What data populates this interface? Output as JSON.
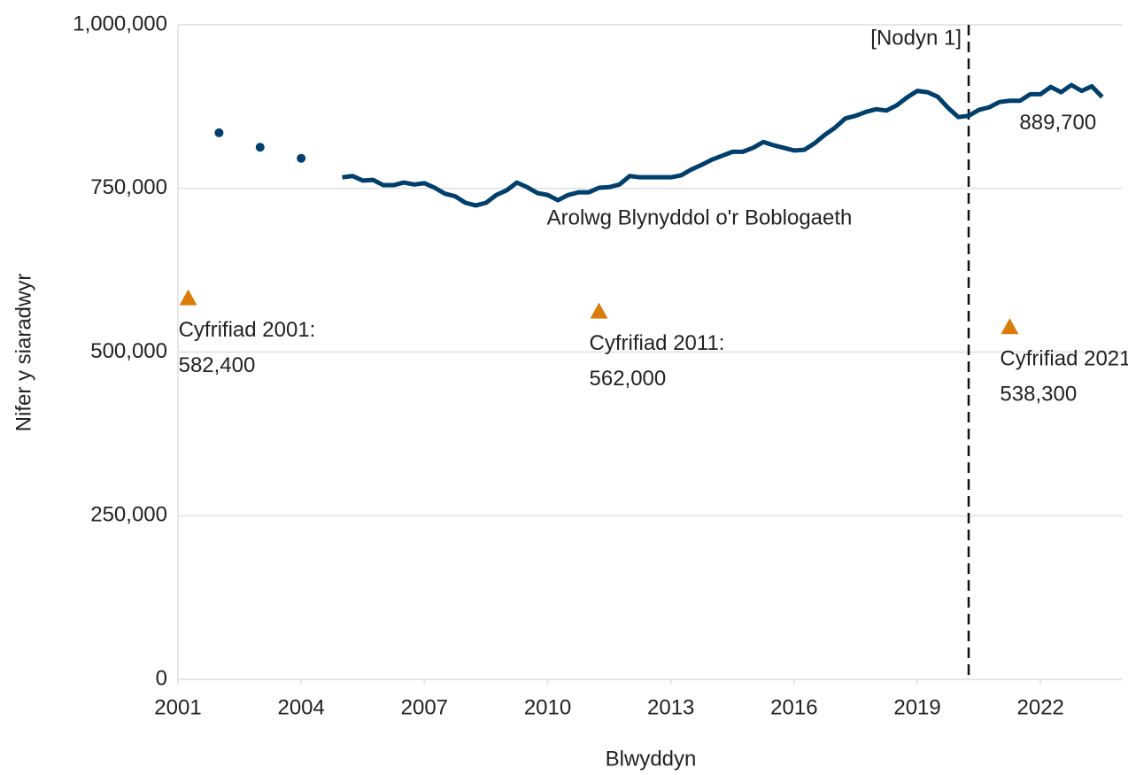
{
  "chart_data": {
    "type": "line",
    "xlabel": "Blwyddyn",
    "ylabel": "Nifer y siaradwyr",
    "xlim": [
      2001,
      2024
    ],
    "xticks": [
      2001,
      2004,
      2007,
      2010,
      2013,
      2016,
      2019,
      2022
    ],
    "ylim": [
      0,
      1000000
    ],
    "yticks": [
      0,
      {
        "value": 250000,
        "label": "250,000"
      },
      {
        "value": 500000,
        "label": "500,000"
      },
      {
        "value": 750000,
        "label": "750,000"
      },
      {
        "value": 1000000,
        "label": "1,000,000"
      }
    ],
    "grid": true,
    "series": [
      {
        "style": "dots",
        "color": "#003f6b",
        "x": [
          2002,
          2003,
          2004
        ],
        "values": [
          835000,
          813000,
          796000
        ]
      },
      {
        "style": "line",
        "name": "Arolwg Blynyddol o'r Boblogaeth",
        "color": "#003f6b",
        "x": [
          2005,
          2005.25,
          2005.5,
          2005.75,
          2006,
          2006.25,
          2006.5,
          2006.75,
          2007,
          2007.25,
          2007.5,
          2007.75,
          2008,
          2008.25,
          2008.5,
          2008.75,
          2009,
          2009.25,
          2009.5,
          2009.75,
          2010,
          2010.25,
          2010.5,
          2010.75,
          2011,
          2011.25,
          2011.5,
          2011.75,
          2012,
          2012.25,
          2012.5,
          2012.75,
          2013,
          2013.25,
          2013.5,
          2013.75,
          2014,
          2014.25,
          2014.5,
          2014.75,
          2015,
          2015.25,
          2015.5,
          2015.75,
          2016,
          2016.25,
          2016.5,
          2016.75,
          2017,
          2017.25,
          2017.5,
          2017.75,
          2018,
          2018.25,
          2018.5,
          2018.75,
          2019,
          2019.25,
          2019.5,
          2019.75,
          2020,
          2020.25,
          2020.5,
          2020.75,
          2021,
          2021.25,
          2021.5,
          2021.75,
          2022,
          2022.25,
          2022.5,
          2022.75,
          2023,
          2023.25,
          2023.5
        ],
        "values": [
          767000,
          769000,
          762000,
          763000,
          755000,
          755000,
          759000,
          756000,
          758000,
          751000,
          742000,
          738000,
          728000,
          724000,
          728000,
          740000,
          747000,
          759000,
          752000,
          743000,
          740000,
          732000,
          740000,
          744000,
          744000,
          751000,
          752000,
          756000,
          769000,
          767000,
          767000,
          767000,
          767000,
          770000,
          779000,
          786000,
          794000,
          800000,
          806000,
          806000,
          812000,
          821000,
          816000,
          812000,
          808000,
          809000,
          819000,
          832000,
          843000,
          857000,
          861000,
          867000,
          871000,
          869000,
          877000,
          889000,
          899000,
          897000,
          890000,
          873000,
          859000,
          861000,
          870000,
          874000,
          882000,
          884000,
          884000,
          894000,
          894000,
          905000,
          897000,
          908000,
          899000,
          906000,
          889700
        ],
        "last_value_label": "889,700"
      },
      {
        "style": "triangles",
        "color": "#d97c0b",
        "x": [
          2001.25,
          2011.25,
          2021.25
        ],
        "values": [
          582400,
          562000,
          538300
        ],
        "point_labels": [
          "Cyfrifiad 2001:",
          "Cyfrifiad 2011:",
          "Cyfrifiad 2021"
        ],
        "value_labels": [
          "582,400",
          "562,000",
          "538,300"
        ]
      }
    ],
    "vline": {
      "x": 2020.25,
      "label": "[Nodyn 1]"
    }
  }
}
